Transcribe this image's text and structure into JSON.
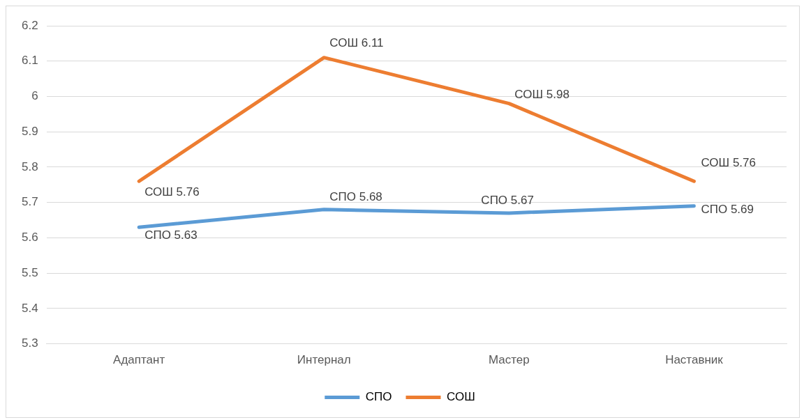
{
  "chart_data": {
    "type": "line",
    "categories": [
      "Адаптант",
      "Интернал",
      "Мастер",
      "Наставник"
    ],
    "series": [
      {
        "name": "СПО",
        "color": "#5b9bd5",
        "values": [
          5.63,
          5.68,
          5.67,
          5.69
        ],
        "value_labels": [
          "СПО 5.63",
          "СПО 5.68",
          "СПО 5.67",
          "СПО 5.69"
        ]
      },
      {
        "name": "СОШ",
        "color": "#ed7d31",
        "values": [
          5.76,
          6.11,
          5.98,
          5.76
        ],
        "value_labels": [
          "СОШ 5.76",
          "СОШ 6.11",
          "СОШ 5.98",
          "СОШ 5.76"
        ]
      }
    ],
    "ylim": [
      5.3,
      6.2
    ],
    "yticks": [
      5.3,
      5.4,
      5.5,
      5.6,
      5.7,
      5.8,
      5.9,
      6,
      6.1,
      6.2
    ],
    "grid": "y",
    "legend": "bottom",
    "marker": "none",
    "line_style": "solid"
  }
}
